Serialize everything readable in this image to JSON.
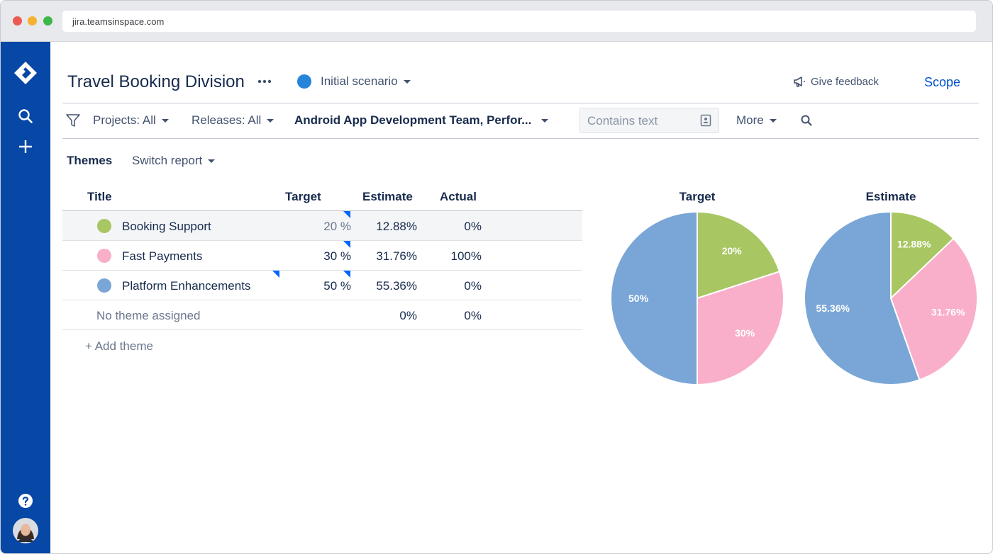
{
  "browser": {
    "url": "jira.teamsinspace.com"
  },
  "header": {
    "title": "Travel Booking Division",
    "more_icon": "ellipsis-icon",
    "scenario": "Initial scenario",
    "scenario_color": "#2684d9",
    "feedback": "Give feedback",
    "scope": "Scope"
  },
  "filters": {
    "projects": "Projects: All",
    "releases": "Releases: All",
    "teams": "Android App Development Team, Perfor...",
    "search_placeholder": "Contains text",
    "more": "More"
  },
  "report": {
    "label": "Themes",
    "switch": "Switch report"
  },
  "table": {
    "headers": {
      "title": "Title",
      "target": "Target",
      "estimate": "Estimate",
      "actual": "Actual"
    },
    "rows": [
      {
        "title": "Booking Support",
        "color": "#a8c662",
        "target": "20 %",
        "estimate": "12.88%",
        "actual": "0%"
      },
      {
        "title": "Fast Payments",
        "color": "#f9afc9",
        "target": "30 %",
        "estimate": "31.76%",
        "actual": "100%"
      },
      {
        "title": "Platform Enhancements",
        "color": "#79a6d6",
        "target": "50 %",
        "estimate": "55.36%",
        "actual": "0%"
      },
      {
        "title": "No theme assigned",
        "estimate": "0%",
        "actual": "0%"
      }
    ],
    "add_theme": "+ Add theme"
  },
  "chart_data": [
    {
      "type": "pie",
      "title": "Target",
      "categories": [
        "Booking Support",
        "Fast Payments",
        "Platform Enhancements"
      ],
      "values": [
        20,
        30,
        50
      ],
      "labels": [
        "20%",
        "30%",
        "50%"
      ],
      "colors": [
        "#a8c662",
        "#f9afc9",
        "#79a6d6"
      ]
    },
    {
      "type": "pie",
      "title": "Estimate",
      "categories": [
        "Booking Support",
        "Fast Payments",
        "Platform Enhancements"
      ],
      "values": [
        12.88,
        31.76,
        55.36
      ],
      "labels": [
        "12.88%",
        "31.76%",
        "55.36%"
      ],
      "colors": [
        "#a8c662",
        "#f9afc9",
        "#79a6d6"
      ]
    }
  ]
}
